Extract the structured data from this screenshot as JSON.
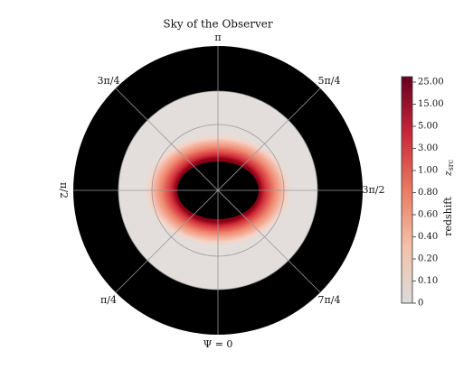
{
  "chart_data": {
    "type": "polar-image",
    "title": "Sky of the Observer",
    "angle_labels": [
      "π",
      "3π/4",
      "5π/4",
      "π/2",
      "3π/2",
      "π/4",
      "7π/4",
      "Ψ = 0"
    ],
    "colorbar": {
      "label": "redshift",
      "symbol": "z",
      "symbol_subscript": "src",
      "ticks": [
        {
          "value": 25,
          "label": "25.00"
        },
        {
          "value": 15,
          "label": "15.00"
        },
        {
          "value": 5,
          "label": "5.00"
        },
        {
          "value": 3,
          "label": "3.00"
        },
        {
          "value": 1,
          "label": "1.00"
        },
        {
          "value": 0.8,
          "label": "0.80"
        },
        {
          "value": 0.6,
          "label": "0.60"
        },
        {
          "value": 0.4,
          "label": "0.40"
        },
        {
          "value": 0.2,
          "label": "0.20"
        },
        {
          "value": 0.1,
          "label": "0.10"
        },
        0
      ],
      "colors": [
        "#dcdcdc",
        "#f4c1a9",
        "#ea7b62",
        "#c8283a",
        "#67001f"
      ]
    }
  }
}
